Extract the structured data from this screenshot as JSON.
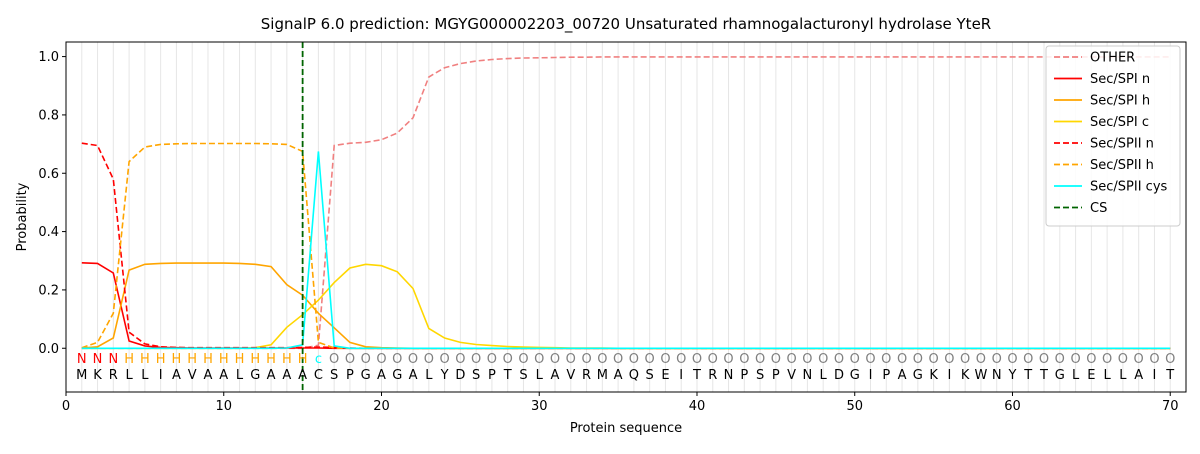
{
  "chart_data": {
    "type": "line",
    "title": "SignalP 6.0 prediction: MGYG000002203_00720 Unsaturated rhamnogalacturonyl hydrolase YteR",
    "xlabel": "Protein sequence",
    "ylabel": "Probability",
    "xlim": [
      0,
      71
    ],
    "ylim": [
      -0.15,
      1.05
    ],
    "xticks": [
      0,
      10,
      20,
      30,
      40,
      50,
      60,
      70
    ],
    "yticks": [
      0.0,
      0.2,
      0.4,
      0.6,
      0.8,
      1.0
    ],
    "ytick_labels": [
      "0.0",
      "0.2",
      "0.4",
      "0.6",
      "0.8",
      "1.0"
    ],
    "grid": "vertical lines at each residue",
    "legend_position": "top-right",
    "sequence": [
      "M",
      "K",
      "R",
      "L",
      "L",
      "I",
      "A",
      "V",
      "A",
      "A",
      "L",
      "G",
      "A",
      "A",
      "A",
      "C",
      "S",
      "P",
      "G",
      "A",
      "G",
      "A",
      "L",
      "Y",
      "D",
      "S",
      "P",
      "T",
      "S",
      "L",
      "A",
      "V",
      "R",
      "M",
      "A",
      "Q",
      "S",
      "E",
      "I",
      "T",
      "R",
      "N",
      "P",
      "S",
      "P",
      "V",
      "N",
      "L",
      "D",
      "G",
      "I",
      "P",
      "A",
      "G",
      "K",
      "I",
      "K",
      "W",
      "N",
      "Y",
      "T",
      "T",
      "G",
      "L",
      "E",
      "L",
      "L",
      "A",
      "I",
      "T"
    ],
    "labels": [
      "N",
      "N",
      "N",
      "H",
      "H",
      "H",
      "H",
      "H",
      "H",
      "H",
      "H",
      "H",
      "H",
      "H",
      "H",
      "c",
      "O",
      "O",
      "O",
      "O",
      "O",
      "O",
      "O",
      "O",
      "O",
      "O",
      "O",
      "O",
      "O",
      "O",
      "O",
      "O",
      "O",
      "O",
      "O",
      "O",
      "O",
      "O",
      "O",
      "O",
      "O",
      "O",
      "O",
      "O",
      "O",
      "O",
      "O",
      "O",
      "O",
      "O",
      "O",
      "O",
      "O",
      "O",
      "O",
      "O",
      "O",
      "O",
      "O",
      "O",
      "O",
      "O",
      "O",
      "O",
      "O",
      "O",
      "O",
      "O",
      "O",
      "O"
    ],
    "label_colors": {
      "N": "#ff0000",
      "H": "#ffa500",
      "c": "#00ffff",
      "O": "#808080"
    },
    "cs_position": 15,
    "x": [
      1,
      2,
      3,
      4,
      5,
      6,
      7,
      8,
      9,
      10,
      11,
      12,
      13,
      14,
      15,
      16,
      17,
      18,
      19,
      20,
      21,
      22,
      23,
      24,
      25,
      26,
      27,
      28,
      29,
      30,
      31,
      32,
      33,
      34,
      35,
      36,
      37,
      38,
      39,
      40,
      41,
      42,
      43,
      44,
      45,
      46,
      47,
      48,
      49,
      50,
      51,
      52,
      53,
      54,
      55,
      56,
      57,
      58,
      59,
      60,
      61,
      62,
      63,
      64,
      65,
      66,
      67,
      68,
      69,
      70
    ],
    "series": [
      {
        "name": "OTHER",
        "color": "#f08080",
        "dash": "dashed",
        "values": [
          0,
          0,
          0,
          0,
          0,
          0,
          0,
          0,
          0,
          0,
          0,
          0,
          0,
          0,
          0,
          0.01,
          0.695,
          0.703,
          0.706,
          0.715,
          0.738,
          0.79,
          0.93,
          0.962,
          0.976,
          0.985,
          0.99,
          0.993,
          0.995,
          0.996,
          0.997,
          0.998,
          0.998,
          0.999,
          0.999,
          0.999,
          0.999,
          0.999,
          0.999,
          0.999,
          0.999,
          0.999,
          0.999,
          0.999,
          0.999,
          0.999,
          0.999,
          0.999,
          0.999,
          0.999,
          0.999,
          0.999,
          0.999,
          0.999,
          0.999,
          0.999,
          0.999,
          0.999,
          0.999,
          0.999,
          0.999,
          0.999,
          0.999,
          0.999,
          0.999,
          0.999,
          0.999,
          0.999,
          0.999,
          0.999
        ]
      },
      {
        "name": "Sec/SPI n",
        "color": "#ff0000",
        "dash": "solid",
        "values": [
          0.293,
          0.291,
          0.258,
          0.025,
          0.008,
          0.003,
          0.002,
          0.001,
          0.001,
          0.001,
          0.001,
          0.001,
          0.001,
          0.001,
          0.001,
          0.001,
          0,
          0,
          0,
          0,
          0,
          0,
          0,
          0,
          0,
          0,
          0,
          0,
          0,
          0,
          0,
          0,
          0,
          0,
          0,
          0,
          0,
          0,
          0,
          0,
          0,
          0,
          0,
          0,
          0,
          0,
          0,
          0,
          0,
          0,
          0,
          0,
          0,
          0,
          0,
          0,
          0,
          0,
          0,
          0,
          0,
          0,
          0,
          0,
          0,
          0,
          0,
          0,
          0,
          0
        ]
      },
      {
        "name": "Sec/SPI h",
        "color": "#ffa500",
        "dash": "solid",
        "values": [
          0.001,
          0.005,
          0.035,
          0.268,
          0.288,
          0.291,
          0.292,
          0.292,
          0.292,
          0.292,
          0.291,
          0.288,
          0.28,
          0.218,
          0.182,
          0.12,
          0.07,
          0.02,
          0.005,
          0.002,
          0.001,
          0,
          0,
          0,
          0,
          0,
          0,
          0,
          0,
          0,
          0,
          0,
          0,
          0,
          0,
          0,
          0,
          0,
          0,
          0,
          0,
          0,
          0,
          0,
          0,
          0,
          0,
          0,
          0,
          0,
          0,
          0,
          0,
          0,
          0,
          0,
          0,
          0,
          0,
          0,
          0,
          0,
          0,
          0,
          0,
          0,
          0,
          0,
          0,
          0
        ]
      },
      {
        "name": "Sec/SPI c",
        "color": "#ffd700",
        "dash": "solid",
        "values": [
          0,
          0,
          0,
          0,
          0,
          0,
          0,
          0,
          0,
          0,
          0,
          0.002,
          0.012,
          0.072,
          0.115,
          0.165,
          0.225,
          0.275,
          0.288,
          0.283,
          0.262,
          0.205,
          0.068,
          0.035,
          0.02,
          0.013,
          0.009,
          0.006,
          0.004,
          0.003,
          0.002,
          0.001,
          0.001,
          0.001,
          0,
          0,
          0,
          0,
          0,
          0,
          0,
          0,
          0,
          0,
          0,
          0,
          0,
          0,
          0,
          0,
          0,
          0,
          0,
          0,
          0,
          0,
          0,
          0,
          0,
          0,
          0,
          0,
          0,
          0,
          0,
          0,
          0,
          0,
          0,
          0
        ]
      },
      {
        "name": "Sec/SPII n",
        "color": "#ff0000",
        "dash": "dashed",
        "values": [
          0.703,
          0.695,
          0.58,
          0.055,
          0.015,
          0.005,
          0.003,
          0.002,
          0.002,
          0.002,
          0.002,
          0.002,
          0.002,
          0.002,
          0.003,
          0.004,
          0.003,
          0.001,
          0,
          0,
          0,
          0,
          0,
          0,
          0,
          0,
          0,
          0,
          0,
          0,
          0,
          0,
          0,
          0,
          0,
          0,
          0,
          0,
          0,
          0,
          0,
          0,
          0,
          0,
          0,
          0,
          0,
          0,
          0,
          0,
          0,
          0,
          0,
          0,
          0,
          0,
          0,
          0,
          0,
          0,
          0,
          0,
          0,
          0,
          0,
          0,
          0,
          0,
          0,
          0
        ]
      },
      {
        "name": "Sec/SPII h",
        "color": "#ffa500",
        "dash": "dashed",
        "values": [
          0.002,
          0.02,
          0.12,
          0.64,
          0.69,
          0.699,
          0.701,
          0.702,
          0.702,
          0.702,
          0.702,
          0.702,
          0.701,
          0.699,
          0.675,
          0.02,
          0.001,
          0,
          0,
          0,
          0,
          0,
          0,
          0,
          0,
          0,
          0,
          0,
          0,
          0,
          0,
          0,
          0,
          0,
          0,
          0,
          0,
          0,
          0,
          0,
          0,
          0,
          0,
          0,
          0,
          0,
          0,
          0,
          0,
          0,
          0,
          0,
          0,
          0,
          0,
          0,
          0,
          0,
          0,
          0,
          0,
          0,
          0,
          0,
          0,
          0,
          0,
          0,
          0,
          0
        ]
      },
      {
        "name": "Sec/SPII cys",
        "color": "#00ffff",
        "dash": "solid",
        "values": [
          0,
          0,
          0,
          0,
          0,
          0,
          0,
          0,
          0,
          0,
          0,
          0,
          0,
          0.001,
          0.012,
          0.675,
          0.008,
          0,
          0,
          0,
          0,
          0,
          0,
          0,
          0,
          0,
          0,
          0,
          0,
          0,
          0,
          0,
          0,
          0,
          0,
          0,
          0,
          0,
          0,
          0,
          0,
          0,
          0,
          0,
          0,
          0,
          0,
          0,
          0,
          0,
          0,
          0,
          0,
          0,
          0,
          0,
          0,
          0,
          0,
          0,
          0,
          0,
          0,
          0,
          0,
          0,
          0,
          0,
          0,
          0
        ]
      }
    ],
    "legend": [
      {
        "name": "OTHER",
        "color": "#f08080",
        "dash": "dashed"
      },
      {
        "name": "Sec/SPI n",
        "color": "#ff0000",
        "dash": "solid"
      },
      {
        "name": "Sec/SPI h",
        "color": "#ffa500",
        "dash": "solid"
      },
      {
        "name": "Sec/SPI c",
        "color": "#ffd700",
        "dash": "solid"
      },
      {
        "name": "Sec/SPII n",
        "color": "#ff0000",
        "dash": "dashed"
      },
      {
        "name": "Sec/SPII h",
        "color": "#ffa500",
        "dash": "dashed"
      },
      {
        "name": "Sec/SPII cys",
        "color": "#00ffff",
        "dash": "solid"
      },
      {
        "name": "CS",
        "color": "#006400",
        "dash": "dashed"
      }
    ]
  }
}
